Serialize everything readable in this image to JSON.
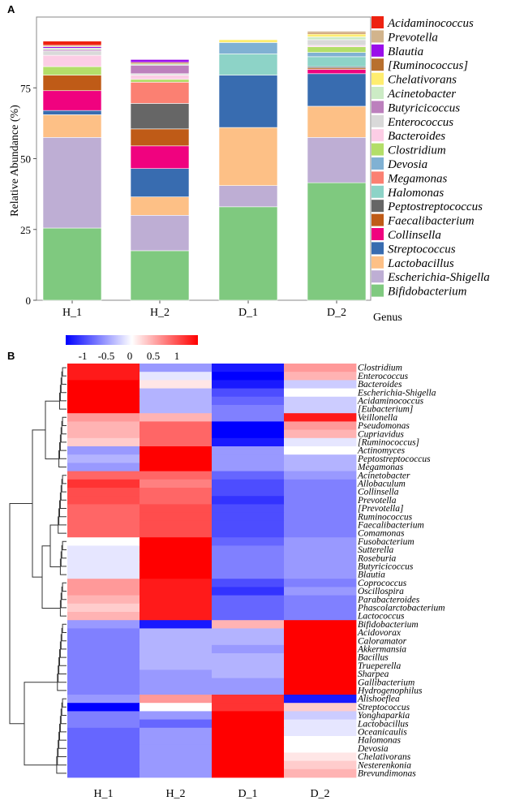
{
  "panel_a": {
    "label": "A"
  },
  "panel_b": {
    "label": "B"
  },
  "chart_data": [
    {
      "type": "bar",
      "stacked": true,
      "title": "",
      "xlabel": "Genus",
      "ylabel": "Relative Abundance (%)",
      "ylim": [
        0,
        100
      ],
      "yticks": [
        0,
        25,
        50,
        75
      ],
      "categories": [
        "H_1",
        "H_2",
        "D_1",
        "D_2"
      ],
      "series": [
        {
          "name": "Bifidobacterium",
          "color": "#7fc97f",
          "values": [
            25.5,
            17.5,
            33.0,
            41.5
          ]
        },
        {
          "name": "Escherichia-Shigella",
          "color": "#beaed4",
          "values": [
            32.0,
            12.5,
            7.5,
            16.0
          ]
        },
        {
          "name": "Lactobacillus",
          "color": "#fdc086",
          "values": [
            8.0,
            6.5,
            20.5,
            11.0
          ]
        },
        {
          "name": "Streptococcus",
          "color": "#386cb0",
          "values": [
            1.5,
            10.0,
            18.5,
            11.5
          ]
        },
        {
          "name": "Collinsella",
          "color": "#f0027f",
          "values": [
            7.0,
            8.0,
            0.0,
            1.5
          ]
        },
        {
          "name": "Faecalibacterium",
          "color": "#bf5b17",
          "values": [
            5.5,
            6.0,
            0.0,
            0.5
          ]
        },
        {
          "name": "Peptostreptococcus",
          "color": "#666666",
          "values": [
            0.0,
            9.0,
            0.0,
            0.5
          ]
        },
        {
          "name": "Halomonas",
          "color": "#8dd3c7",
          "values": [
            0.0,
            0.0,
            7.5,
            3.5
          ]
        },
        {
          "name": "Megamonas",
          "color": "#fb8072",
          "values": [
            0.0,
            7.5,
            0.0,
            0.0
          ]
        },
        {
          "name": "Devosia",
          "color": "#80b1d3",
          "values": [
            0.0,
            0.0,
            4.0,
            1.5
          ]
        },
        {
          "name": "Clostridium",
          "color": "#b3de69",
          "values": [
            3.0,
            1.0,
            0.0,
            2.0
          ]
        },
        {
          "name": "Bacteroides",
          "color": "#fccde5",
          "values": [
            4.0,
            1.5,
            0.0,
            0.5
          ]
        },
        {
          "name": "Enterococcus",
          "color": "#d9d9d9",
          "values": [
            1.5,
            0.5,
            0.0,
            2.0
          ]
        },
        {
          "name": "Butyricicoccus",
          "color": "#bc80bd",
          "values": [
            0.5,
            3.0,
            0.0,
            0.0
          ]
        },
        {
          "name": "Acinetobacter",
          "color": "#ccebc5",
          "values": [
            0.5,
            0.5,
            0.0,
            1.0
          ]
        },
        {
          "name": "Chelativorans",
          "color": "#ffed6f",
          "values": [
            0.0,
            0.0,
            1.0,
            1.0
          ]
        },
        {
          "name": "[Ruminococcus]",
          "color": "#b8702e",
          "values": [
            0.0,
            0.5,
            0.0,
            0.5
          ]
        },
        {
          "name": "Blautia",
          "color": "#9a0eea",
          "values": [
            0.5,
            1.0,
            0.0,
            0.0
          ]
        },
        {
          "name": "Prevotella",
          "color": "#d2b48c",
          "values": [
            0.5,
            0.0,
            0.0,
            0.5
          ]
        },
        {
          "name": "Acidaminococcus",
          "color": "#ee2211",
          "values": [
            1.5,
            0.0,
            0.0,
            0.0
          ]
        }
      ]
    },
    {
      "type": "heatmap",
      "title": "",
      "colorbar": {
        "ticks": [
          "-1",
          "-0.5",
          "0",
          "0.5",
          "1"
        ],
        "range": [
          -1,
          1
        ],
        "colors": [
          "#0000ff",
          "#ffffff",
          "#ff0000"
        ]
      },
      "columns": [
        "H_1",
        "H_2",
        "D_1",
        "D_2"
      ],
      "rows": [
        {
          "name": "Clostridium",
          "values": [
            0.9,
            -0.4,
            -0.9,
            0.4
          ]
        },
        {
          "name": "Enterococcus",
          "values": [
            0.9,
            -0.1,
            -1.0,
            0.3
          ]
        },
        {
          "name": "Bacteroides",
          "values": [
            1.0,
            0.1,
            -0.9,
            -0.2
          ]
        },
        {
          "name": "Escherichia-Shigella",
          "values": [
            1.0,
            -0.3,
            -0.7,
            0.0
          ]
        },
        {
          "name": "Acidaminococcus",
          "values": [
            1.0,
            -0.3,
            -0.6,
            -0.2
          ]
        },
        {
          "name": "[Eubacterium]",
          "values": [
            1.0,
            -0.3,
            -0.5,
            -0.2
          ]
        },
        {
          "name": "Veillonella",
          "values": [
            0.4,
            0.3,
            -0.5,
            0.9
          ]
        },
        {
          "name": "Pseudomonas",
          "values": [
            0.3,
            0.6,
            -1.0,
            0.4
          ]
        },
        {
          "name": "Cupriavidus",
          "values": [
            0.3,
            0.6,
            -1.0,
            0.3
          ]
        },
        {
          "name": "[Ruminococcus]",
          "values": [
            0.2,
            0.6,
            -0.9,
            -0.1
          ]
        },
        {
          "name": "Actinomyces",
          "values": [
            -0.4,
            1.0,
            -0.4,
            0.0
          ]
        },
        {
          "name": "Peptostreptococcus",
          "values": [
            -0.3,
            1.0,
            -0.4,
            -0.3
          ]
        },
        {
          "name": "Megamonas",
          "values": [
            -0.4,
            1.0,
            -0.4,
            -0.3
          ]
        },
        {
          "name": "Acinetobacter",
          "values": [
            0.6,
            0.6,
            -0.6,
            -0.4
          ]
        },
        {
          "name": "Allobaculum",
          "values": [
            0.8,
            0.5,
            -0.7,
            -0.5
          ]
        },
        {
          "name": "Collinsella",
          "values": [
            0.7,
            0.6,
            -0.7,
            -0.5
          ]
        },
        {
          "name": "Prevotella",
          "values": [
            0.7,
            0.6,
            -0.8,
            -0.5
          ]
        },
        {
          "name": "[Prevotella]",
          "values": [
            0.6,
            0.7,
            -0.7,
            -0.5
          ]
        },
        {
          "name": "Ruminococcus",
          "values": [
            0.6,
            0.7,
            -0.7,
            -0.5
          ]
        },
        {
          "name": "Faecalibacterium",
          "values": [
            0.6,
            0.7,
            -0.7,
            -0.5
          ]
        },
        {
          "name": "Comamonas",
          "values": [
            0.6,
            0.7,
            -0.7,
            -0.5
          ]
        },
        {
          "name": "Fusobacterium",
          "values": [
            0.0,
            1.0,
            -0.6,
            -0.4
          ]
        },
        {
          "name": "Sutterella",
          "values": [
            -0.1,
            1.0,
            -0.5,
            -0.4
          ]
        },
        {
          "name": "Roseburia",
          "values": [
            -0.1,
            1.0,
            -0.5,
            -0.4
          ]
        },
        {
          "name": "Butyricicoccus",
          "values": [
            -0.1,
            1.0,
            -0.5,
            -0.4
          ]
        },
        {
          "name": "Blautia",
          "values": [
            -0.1,
            1.0,
            -0.5,
            -0.4
          ]
        },
        {
          "name": "Coprococcus",
          "values": [
            0.4,
            0.9,
            -0.7,
            -0.5
          ]
        },
        {
          "name": "Oscillospira",
          "values": [
            0.4,
            0.9,
            -0.8,
            -0.4
          ]
        },
        {
          "name": "Parabacteroides",
          "values": [
            0.3,
            0.9,
            -0.6,
            -0.5
          ]
        },
        {
          "name": "Phascolarctobacterium",
          "values": [
            0.2,
            0.9,
            -0.6,
            -0.5
          ]
        },
        {
          "name": "Lactococcus",
          "values": [
            0.3,
            0.9,
            -0.6,
            -0.5
          ]
        },
        {
          "name": "Bifidobacterium",
          "values": [
            -0.4,
            -0.9,
            0.3,
            1.0
          ]
        },
        {
          "name": "Acidovorax",
          "values": [
            -0.5,
            -0.3,
            -0.3,
            1.0
          ]
        },
        {
          "name": "Caloramator",
          "values": [
            -0.5,
            -0.3,
            -0.3,
            1.0
          ]
        },
        {
          "name": "Akkermansia",
          "values": [
            -0.5,
            -0.3,
            -0.4,
            1.0
          ]
        },
        {
          "name": "Bacillus",
          "values": [
            -0.5,
            -0.3,
            -0.3,
            1.0
          ]
        },
        {
          "name": "Trueperella",
          "values": [
            -0.5,
            -0.3,
            -0.3,
            1.0
          ]
        },
        {
          "name": "Sharpea",
          "values": [
            -0.5,
            -0.4,
            -0.3,
            1.0
          ]
        },
        {
          "name": "Gallibacterium",
          "values": [
            -0.5,
            -0.4,
            -0.4,
            1.0
          ]
        },
        {
          "name": "Hydrogenophilus",
          "values": [
            -0.5,
            -0.4,
            -0.4,
            1.0
          ]
        },
        {
          "name": "Alishoeflea",
          "values": [
            -0.4,
            0.4,
            0.8,
            -0.9
          ]
        },
        {
          "name": "Streptococcus",
          "values": [
            -1.0,
            0.0,
            0.8,
            0.2
          ]
        },
        {
          "name": "Yonghaparkia",
          "values": [
            -0.5,
            -0.4,
            1.0,
            -0.2
          ]
        },
        {
          "name": "Lactobacillus",
          "values": [
            -0.5,
            -0.6,
            1.0,
            -0.1
          ]
        },
        {
          "name": "Oceanicaulis",
          "values": [
            -0.6,
            -0.4,
            1.0,
            -0.1
          ]
        },
        {
          "name": "Halomonas",
          "values": [
            -0.6,
            -0.4,
            1.0,
            0.0
          ]
        },
        {
          "name": "Devosia",
          "values": [
            -0.6,
            -0.4,
            1.0,
            0.0
          ]
        },
        {
          "name": "Chelativorans",
          "values": [
            -0.6,
            -0.4,
            1.0,
            0.1
          ]
        },
        {
          "name": "Nesterenkonia",
          "values": [
            -0.6,
            -0.4,
            1.0,
            0.2
          ]
        },
        {
          "name": "Brevundimonas",
          "values": [
            -0.6,
            -0.4,
            1.0,
            0.3
          ]
        }
      ]
    }
  ]
}
